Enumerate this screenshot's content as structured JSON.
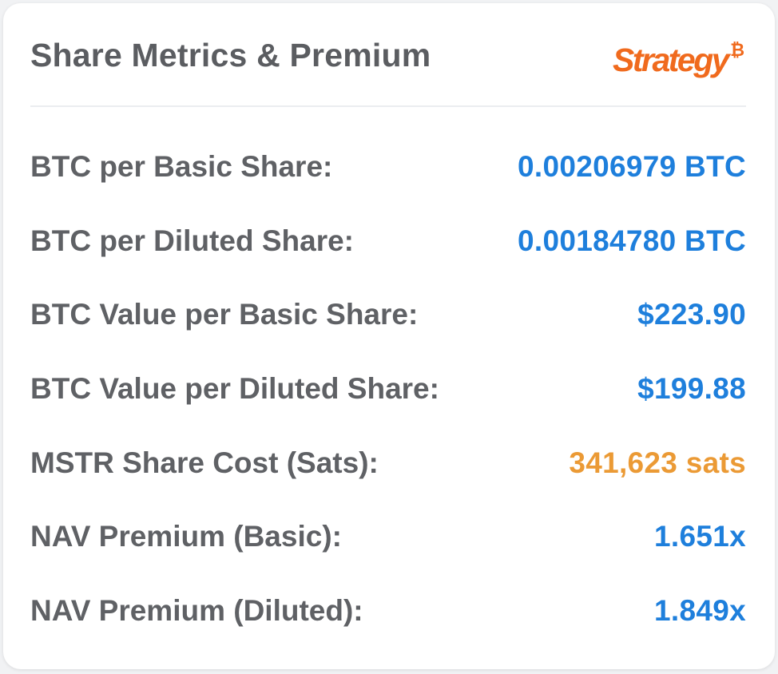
{
  "header": {
    "title": "Share Metrics & Premium",
    "logo_text": "Strategy",
    "logo_symbol": "₿"
  },
  "rows": [
    {
      "label": "BTC per Basic Share:",
      "value": "0.00206979 BTC"
    },
    {
      "label": "BTC per Diluted Share:",
      "value": "0.00184780 BTC"
    },
    {
      "label": "BTC Value per Basic Share:",
      "value": "$223.90"
    },
    {
      "label": "BTC Value per Diluted Share:",
      "value": "$199.88"
    },
    {
      "label": "MSTR Share Cost (Sats):",
      "value": "341,623 sats"
    },
    {
      "label": "NAV Premium (Basic):",
      "value": "1.651x"
    },
    {
      "label": "NAV Premium (Diluted):",
      "value": "1.849x"
    }
  ],
  "colors": {
    "value_blue": "#1e7fdc",
    "value_orange": "#eb9a35",
    "brand_orange": "#f06a1d",
    "label_gray": "#5f6165"
  }
}
